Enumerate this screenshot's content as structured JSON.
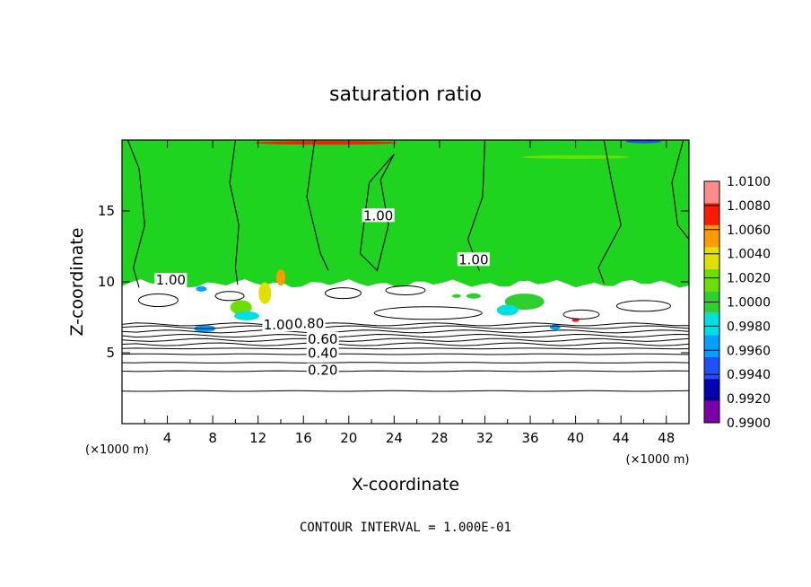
{
  "chart_data": {
    "type": "heatmap",
    "title": "saturation ratio",
    "xlabel": "X-coordinate",
    "ylabel": "Z-coordinate",
    "x_unit": "(×1000 m)",
    "xlim": [
      0,
      50
    ],
    "ylim": [
      0,
      20
    ],
    "x_ticks": [
      4,
      8,
      12,
      16,
      20,
      24,
      28,
      32,
      36,
      40,
      44,
      48
    ],
    "y_ticks": [
      5,
      10,
      15
    ],
    "footer": "CONTOUR INTERVAL = 1.000E-01",
    "colorbar": {
      "levels": [
        "0.9900",
        "0.9920",
        "0.9940",
        "0.9960",
        "0.9980",
        "1.0000",
        "1.0020",
        "1.0040",
        "1.0060",
        "1.0080",
        "1.0100"
      ],
      "colors": [
        "#7a00a8",
        "#0000b0",
        "#1f4fff",
        "#00a0ff",
        "#00e0e0",
        "#2ecf2e",
        "#6be000",
        "#e0e000",
        "#ff9a00",
        "#ff1a00",
        "#ff8c8c"
      ]
    },
    "field": {
      "background_color": "#ffffff",
      "cloud_color": "#1fd41f",
      "cloud_base_z": 10.0
    },
    "contour_labels": [
      {
        "text": "1.00",
        "x": 4.3,
        "z": 10.05
      },
      {
        "text": "1.00",
        "x": 22.6,
        "z": 14.6
      },
      {
        "text": "1.00",
        "x": 31.0,
        "z": 11.5
      },
      {
        "text": "1.00",
        "x": 13.8,
        "z": 6.9
      },
      {
        "text": "0.80",
        "x": 16.5,
        "z": 7.0
      },
      {
        "text": "0.60",
        "x": 17.7,
        "z": 5.9
      },
      {
        "text": "0.40",
        "x": 17.7,
        "z": 4.9
      },
      {
        "text": "0.20",
        "x": 17.7,
        "z": 3.7
      }
    ],
    "horizontal_contours_z": [
      2.3,
      3.7,
      4.3,
      4.9,
      5.3,
      5.6,
      5.9,
      6.2,
      6.5,
      6.8,
      7.0
    ]
  }
}
